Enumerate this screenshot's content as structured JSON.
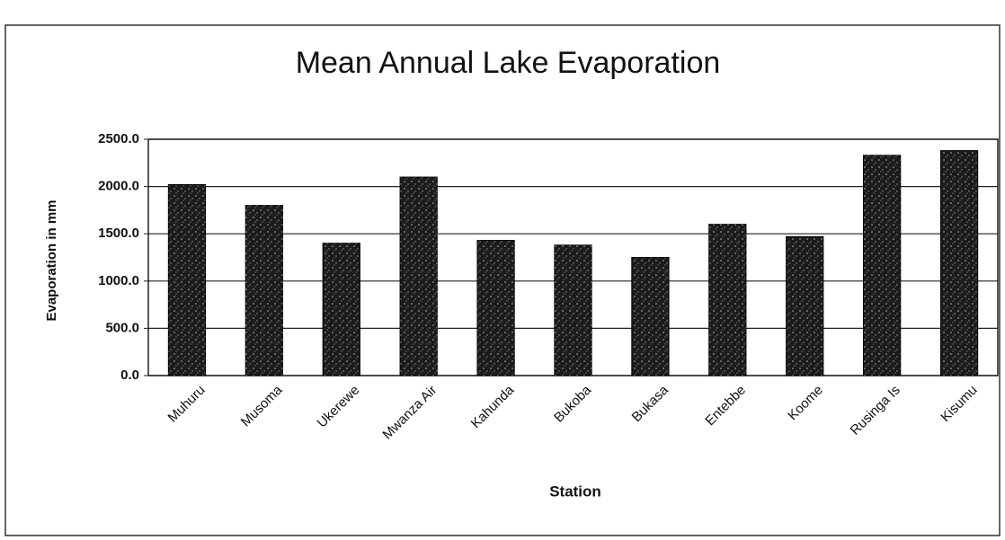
{
  "chart_data": {
    "type": "bar",
    "title": "Mean Annual Lake Evaporation",
    "x_label": "Station",
    "y_label": "Evaporation in mm",
    "categories": [
      "Muhuru",
      "Musoma",
      "Ukerewe",
      "Mwanza Air",
      "Kahunda",
      "Bukoba",
      "Bukasa",
      "Entebbe",
      "Koome",
      "Rusinga Is",
      "Kisumu"
    ],
    "values": [
      2020,
      1800,
      1400,
      2100,
      1430,
      1380,
      1250,
      1600,
      1470,
      2330,
      2380
    ],
    "color": "#1c1c1c",
    "ylim": [
      0,
      2500
    ],
    "yticks": [
      {
        "value": 0,
        "label": "0.0"
      },
      {
        "value": 500,
        "label": "500.0"
      },
      {
        "value": 1000,
        "label": "1000.0"
      },
      {
        "value": 1500,
        "label": "1500.0"
      },
      {
        "value": 2000,
        "label": "2000.0"
      },
      {
        "value": 2500,
        "label": "2500.0"
      }
    ],
    "grid": true
  }
}
